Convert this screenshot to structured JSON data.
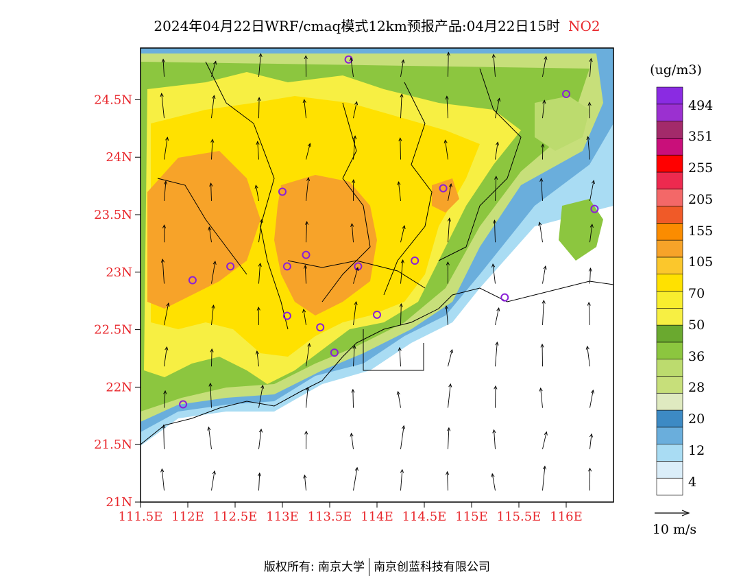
{
  "title": {
    "main": "2024年04月22日WRF/cmaq模式12km预报产品:04月22日15时",
    "variable": "NO2"
  },
  "map": {
    "lat_labels": [
      "24.5N",
      "24N",
      "23.5N",
      "23N",
      "22.5N",
      "22N",
      "21.5N",
      "21N"
    ],
    "lon_labels": [
      "111.5E",
      "112E",
      "112.5E",
      "113E",
      "113.5E",
      "114E",
      "114.5E",
      "115E",
      "115.5E",
      "116E"
    ],
    "lat_range": [
      21,
      24.95
    ],
    "lon_range": [
      111.5,
      116.5
    ],
    "field_colors": {
      "land_high": "#f3a23a",
      "land_mid": "#ffe600",
      "land_low": "#f5ef4b",
      "green_mid": "#8cc63f",
      "green_light": "#c5e06a",
      "blue_light": "#aedcf3",
      "blue_mid": "#5aaad9",
      "sea": "#ffffff"
    }
  },
  "colorbar": {
    "unit": "(ug/m3)",
    "colors": [
      "#ffffff",
      "#dbeef9",
      "#a9dcf3",
      "#6aaedc",
      "#3d8ac4",
      "#dfeac0",
      "#c7df7a",
      "#bcdb6e",
      "#8cc63f",
      "#6aa92f",
      "#f7ef43",
      "#f8ee2e",
      "#ffe100",
      "#fbc72c",
      "#f7a329",
      "#fb8c00",
      "#f05a28",
      "#f36868",
      "#ed2a4f",
      "#ff0000",
      "#c90f7a",
      "#a32a6a",
      "#9b30d0",
      "#8a2be2"
    ],
    "labels": [
      "494",
      "351",
      "255",
      "205",
      "155",
      "105",
      "70",
      "50",
      "36",
      "28",
      "20",
      "12",
      "4"
    ]
  },
  "vector_key": {
    "label": "10 m/s"
  },
  "cities": [
    {
      "lon": 113.7,
      "lat": 24.85
    },
    {
      "lon": 116.0,
      "lat": 24.55
    },
    {
      "lon": 113.0,
      "lat": 23.7
    },
    {
      "lon": 114.7,
      "lat": 23.73
    },
    {
      "lon": 116.3,
      "lat": 23.55
    },
    {
      "lon": 112.45,
      "lat": 23.05
    },
    {
      "lon": 113.05,
      "lat": 23.05
    },
    {
      "lon": 113.25,
      "lat": 23.15
    },
    {
      "lon": 113.8,
      "lat": 23.05
    },
    {
      "lon": 114.4,
      "lat": 23.1
    },
    {
      "lon": 112.05,
      "lat": 22.93
    },
    {
      "lon": 115.35,
      "lat": 22.78
    },
    {
      "lon": 113.05,
      "lat": 22.62
    },
    {
      "lon": 113.4,
      "lat": 22.52
    },
    {
      "lon": 114.0,
      "lat": 22.63
    },
    {
      "lon": 113.55,
      "lat": 22.3
    },
    {
      "lon": 111.95,
      "lat": 21.85
    }
  ],
  "footer": {
    "left": "版权所有: 南京大学",
    "right": "南京创蓝科技有限公司"
  }
}
